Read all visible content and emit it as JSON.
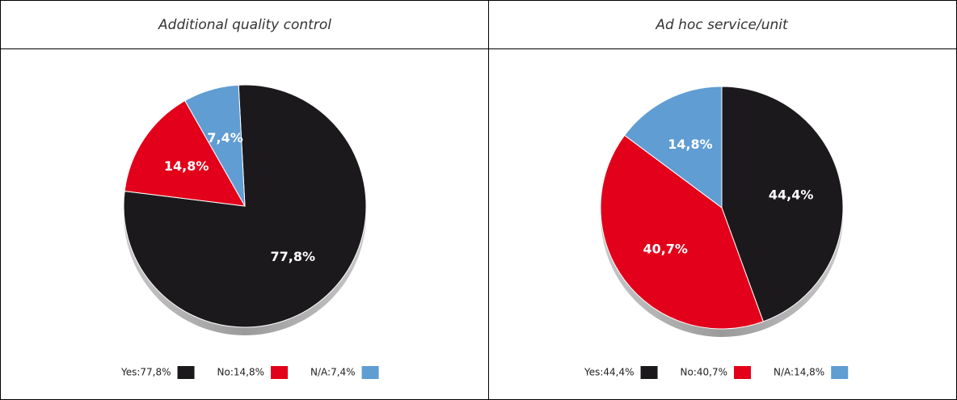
{
  "chart_data": [
    {
      "type": "pie",
      "title": "Additional quality control",
      "categories": [
        "Yes:77,8%",
        "No:14,8%",
        "N/A:7,4%"
      ],
      "values": [
        77.8,
        14.8,
        7.4
      ],
      "value_labels": [
        "77,8%",
        "14,8%",
        "7,4%"
      ],
      "colors": [
        "#1c191c",
        "#e2001a",
        "#5f9dd3"
      ]
    },
    {
      "type": "pie",
      "title": "Ad hoc service/unit",
      "categories": [
        "Yes:44,4%",
        "No:40,7%",
        "N/A:14,8%"
      ],
      "values": [
        44.4,
        40.7,
        14.8
      ],
      "value_labels": [
        "44,4%",
        "40,7%",
        "14,8%"
      ],
      "colors": [
        "#1c191c",
        "#e2001a",
        "#5f9dd3"
      ]
    }
  ]
}
